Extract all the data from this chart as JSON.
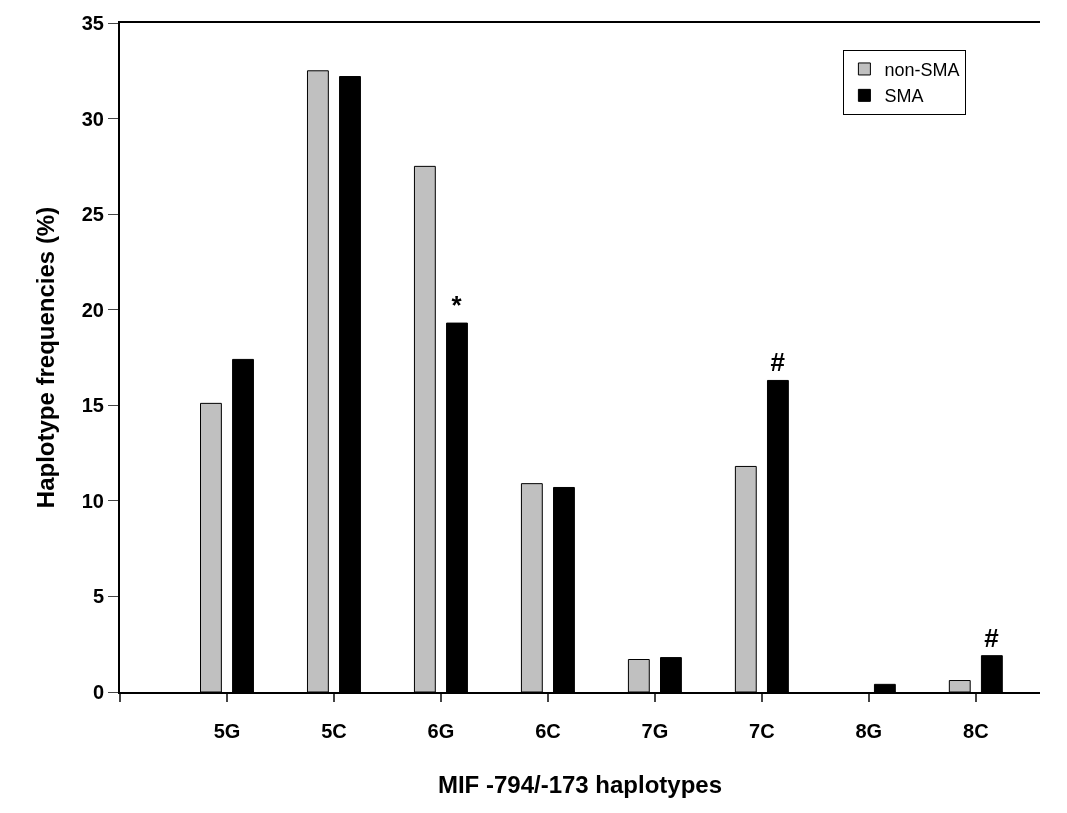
{
  "chart_data": {
    "type": "bar",
    "xlabel": "MIF -794/-173 haplotypes",
    "ylabel": "Haplotype frequencies (%)",
    "categories": [
      "5G",
      "5C",
      "6G",
      "6C",
      "7G",
      "7C",
      "8G",
      "8C"
    ],
    "series": [
      {
        "name": "non-SMA",
        "color": "#c0c0c0",
        "values": [
          15.1,
          32.5,
          27.5,
          10.9,
          1.7,
          11.8,
          null,
          0.6
        ]
      },
      {
        "name": "SMA",
        "color": "#000000",
        "values": [
          17.4,
          32.2,
          19.3,
          10.7,
          1.8,
          16.3,
          0.4,
          1.9
        ],
        "value_labels": [
          null,
          null,
          "*",
          null,
          null,
          "#",
          null,
          "#"
        ]
      }
    ],
    "ylim": [
      0,
      35
    ],
    "yticks": [
      0,
      5,
      10,
      15,
      20,
      25,
      30,
      35
    ],
    "legend": "top right"
  }
}
